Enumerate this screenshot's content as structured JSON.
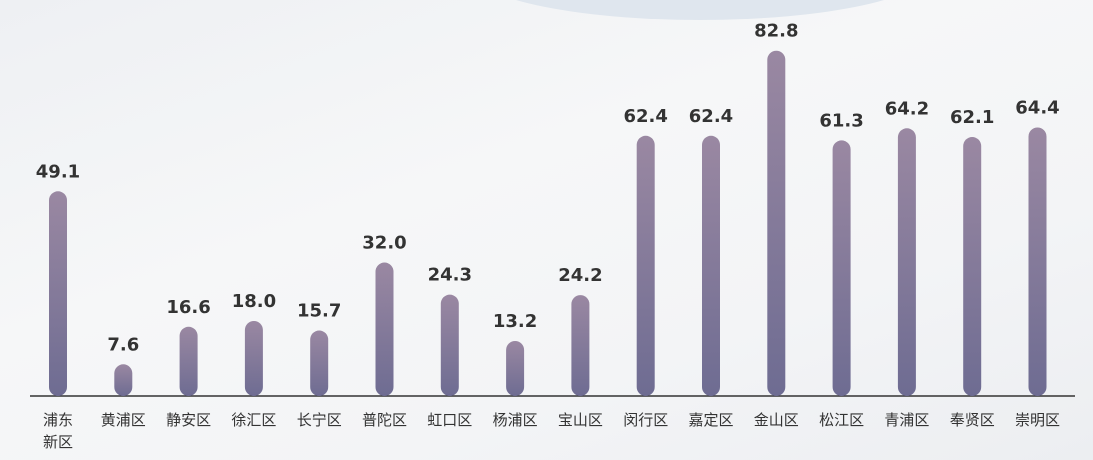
{
  "chart_data": {
    "type": "bar",
    "categories": [
      "浦东\n新区",
      "黄浦区",
      "静安区",
      "徐汇区",
      "长宁区",
      "普陀区",
      "虹口区",
      "杨浦区",
      "宝山区",
      "闵行区",
      "嘉定区",
      "金山区",
      "松江区",
      "青浦区",
      "奉贤区",
      "崇明区"
    ],
    "values": [
      49.1,
      7.6,
      16.6,
      18.0,
      15.7,
      32.0,
      24.3,
      13.2,
      24.2,
      62.4,
      62.4,
      82.8,
      61.3,
      64.2,
      62.1,
      64.4
    ],
    "value_labels": [
      "49.1",
      "7.6",
      "16.6",
      "18.0",
      "15.7",
      "32.0",
      "24.3",
      "13.2",
      "24.2",
      "62.4",
      "62.4",
      "82.8",
      "61.3",
      "64.2",
      "62.1",
      "64.4"
    ],
    "color": "#9a88a2"
  }
}
